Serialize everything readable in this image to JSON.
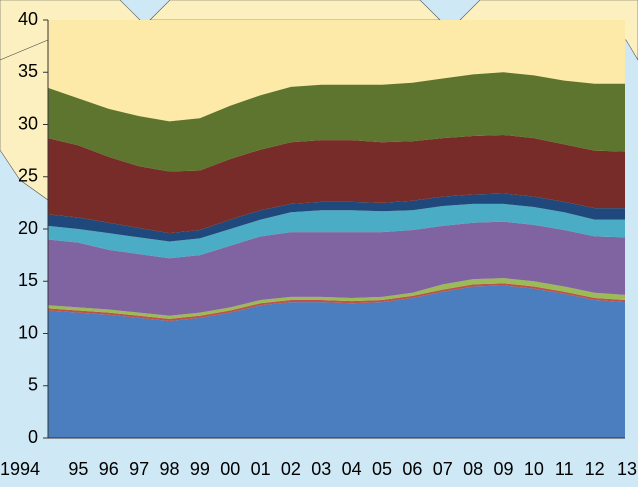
{
  "chart_data": {
    "type": "stacked_area",
    "categories": [
      "1994",
      "95",
      "96",
      "97",
      "98",
      "99",
      "00",
      "01",
      "02",
      "03",
      "04",
      "05",
      "06",
      "07",
      "08",
      "09",
      "10",
      "11",
      "12",
      "13"
    ],
    "ylim": [
      0,
      40
    ],
    "yticks": [
      0,
      5,
      10,
      15,
      20,
      25,
      30,
      35,
      40
    ],
    "grid": false,
    "series": [
      {
        "color": "#4a7ebf",
        "values": [
          12.2,
          12.0,
          11.8,
          11.5,
          11.2,
          11.5,
          12.0,
          12.7,
          13.0,
          13.0,
          12.9,
          13.0,
          13.4,
          14.0,
          14.5,
          14.6,
          14.3,
          13.8,
          13.2,
          13.0
        ]
      },
      {
        "color": "#c0504d",
        "values": [
          0.2,
          0.2,
          0.2,
          0.2,
          0.2,
          0.2,
          0.2,
          0.2,
          0.2,
          0.2,
          0.2,
          0.2,
          0.2,
          0.2,
          0.2,
          0.2,
          0.2,
          0.2,
          0.2,
          0.2
        ]
      },
      {
        "color": "#9bbb59",
        "values": [
          0.3,
          0.3,
          0.3,
          0.3,
          0.3,
          0.3,
          0.3,
          0.3,
          0.3,
          0.3,
          0.3,
          0.3,
          0.3,
          0.5,
          0.5,
          0.5,
          0.5,
          0.5,
          0.5,
          0.5
        ]
      },
      {
        "color": "#8064a2",
        "values": [
          6.3,
          6.2,
          5.7,
          5.6,
          5.5,
          5.5,
          5.9,
          6.1,
          6.2,
          6.2,
          6.3,
          6.2,
          6.0,
          5.6,
          5.4,
          5.4,
          5.4,
          5.4,
          5.4,
          5.5
        ]
      },
      {
        "color": "#4bacc6",
        "values": [
          1.3,
          1.3,
          1.6,
          1.6,
          1.6,
          1.6,
          1.6,
          1.6,
          1.9,
          2.1,
          2.1,
          2.0,
          1.9,
          1.9,
          1.8,
          1.7,
          1.7,
          1.7,
          1.6,
          1.7
        ]
      },
      {
        "color": "#1f497d",
        "values": [
          1.1,
          1.1,
          1.0,
          0.9,
          0.8,
          0.8,
          0.9,
          0.9,
          0.8,
          0.8,
          0.8,
          0.8,
          0.9,
          0.9,
          0.9,
          1.0,
          1.0,
          1.0,
          1.1,
          1.1
        ]
      },
      {
        "color": "#772c2a",
        "values": [
          7.3,
          6.9,
          6.3,
          5.9,
          5.9,
          5.7,
          5.8,
          5.8,
          5.9,
          5.9,
          5.9,
          5.8,
          5.7,
          5.6,
          5.6,
          5.6,
          5.6,
          5.5,
          5.5,
          5.4
        ]
      },
      {
        "color": "#5e7530",
        "values": [
          4.8,
          4.5,
          4.6,
          4.8,
          4.8,
          5.0,
          5.1,
          5.2,
          5.3,
          5.3,
          5.3,
          5.5,
          5.6,
          5.7,
          5.9,
          6.0,
          6.0,
          6.1,
          6.4,
          6.5
        ]
      }
    ]
  }
}
